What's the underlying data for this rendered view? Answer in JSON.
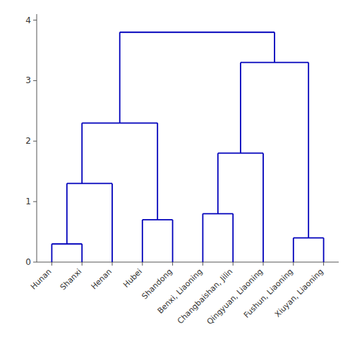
{
  "chart_data": {
    "type": "dendrogram",
    "categories": [
      "Hunan",
      "Shanxi",
      "Henan",
      "Hubei",
      "Shandong",
      "Benxi, Liaoning",
      "Changbaishan, Jilin",
      "Qingyuan, Liaoning",
      "Fushun, Liaoning",
      "Xiuyan, Liaoning"
    ],
    "color": "#0000bb",
    "ylim": [
      0,
      4.1
    ],
    "yticks": [
      0,
      1,
      2,
      3,
      4
    ],
    "grid": false,
    "merges": [
      {
        "left": 0.0,
        "right": 1.0,
        "height": 0.3,
        "node": 0.5
      },
      {
        "left": 0.5,
        "right": 2.0,
        "height": 1.3,
        "node": 1.0
      },
      {
        "left": 3.0,
        "right": 4.0,
        "height": 0.7,
        "node": 3.5
      },
      {
        "left": 1.0,
        "right": 3.5,
        "height": 2.3,
        "node": 2.25
      },
      {
        "left": 5.0,
        "right": 6.0,
        "height": 0.8,
        "node": 5.5
      },
      {
        "left": 5.5,
        "right": 7.0,
        "height": 1.8,
        "node": 6.25
      },
      {
        "left": 8.0,
        "right": 9.0,
        "height": 0.4,
        "node": 8.5
      },
      {
        "left": 6.25,
        "right": 8.5,
        "height": 3.3,
        "node": 7.375
      },
      {
        "left": 2.25,
        "right": 7.375,
        "height": 3.8,
        "node": 4.8125
      }
    ]
  }
}
